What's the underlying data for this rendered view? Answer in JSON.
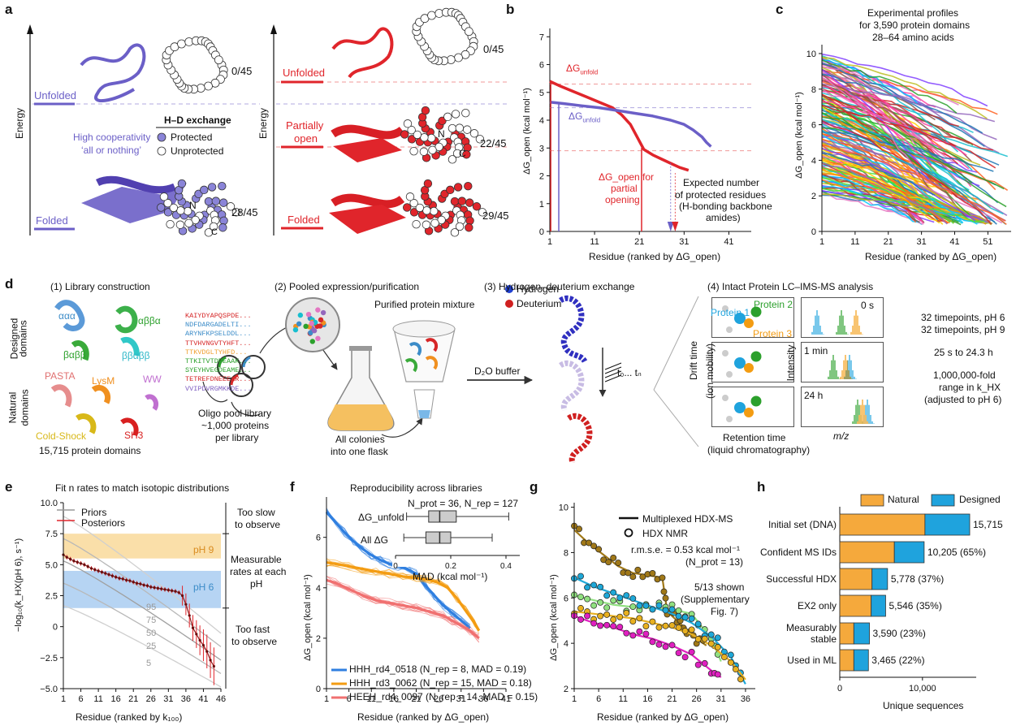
{
  "panel_letters": [
    "a",
    "b",
    "c",
    "d",
    "e",
    "f",
    "g",
    "h"
  ],
  "panel_a": {
    "left": {
      "energy_label": "Energy",
      "unfolded": "Unfolded",
      "folded": "Folded",
      "cooperativity": [
        "High cooperativity",
        "‘all or nothing’"
      ],
      "hdx_title": "H–D exchange",
      "protected": "Protected",
      "unprotected": "Unprotected",
      "count_unfolded": "0/45",
      "count_folded": "28/45",
      "n_label": "N",
      "c_label": "C"
    },
    "right": {
      "energy_label": "Energy",
      "unfolded": "Unfolded",
      "partially_open": [
        "Partially",
        "open"
      ],
      "folded": "Folded",
      "count_unfolded": "0/45",
      "count_partial": "22/45",
      "count_folded": "29/45"
    },
    "colors": {
      "purple": "#6b5fc7",
      "red": "#e0252b"
    }
  },
  "panel_b": {
    "ylabel": "ΔG_open (kcal mol⁻¹)",
    "xlabel": "Residue (ranked by ΔG_open)",
    "dg_unfold_red": "ΔG",
    "dg_unfold_red_sub": "unfold",
    "dg_unfold_purple": "ΔG",
    "dg_unfold_purple_sub": "unfold",
    "dg_open_partial": [
      "ΔG_open for",
      "partial",
      "opening"
    ],
    "expected": [
      "Expected number",
      "of protected residues",
      "(H-bonding backbone",
      "amides)"
    ],
    "chart_data": {
      "type": "line",
      "xticks": [
        1,
        11,
        21,
        31,
        41
      ],
      "yticks": [
        0,
        1,
        2,
        3,
        4,
        5,
        6,
        7
      ],
      "xlim": [
        1,
        46
      ],
      "ylim": [
        0,
        7.3
      ],
      "series": [
        {
          "color": "#e0252b",
          "x": [
            1,
            3,
            6,
            9,
            12,
            15,
            17,
            19,
            21,
            22,
            24,
            26,
            28,
            30,
            32
          ],
          "y": [
            5.4,
            5.25,
            5.05,
            4.85,
            4.65,
            4.45,
            4.2,
            3.85,
            3.25,
            2.95,
            2.75,
            2.6,
            2.45,
            2.3,
            2.2
          ]
        },
        {
          "color": "#6b5fc7",
          "x": [
            1,
            4,
            8,
            12,
            16,
            20,
            24,
            28,
            31,
            33,
            35,
            36,
            37
          ],
          "y": [
            4.65,
            4.6,
            4.52,
            4.45,
            4.35,
            4.25,
            4.15,
            4.0,
            3.85,
            3.65,
            3.4,
            3.2,
            3.05
          ]
        }
      ]
    }
  },
  "panel_c": {
    "title": [
      "Experimental profiles",
      "for 3,590 protein domains",
      "28–64 amino acids"
    ],
    "ylabel": "ΔG_open (kcal mol⁻¹)",
    "xlabel": "Residue (ranked by ΔG_open)",
    "chart_data": {
      "type": "line",
      "xticks": [
        1,
        11,
        21,
        31,
        41,
        51
      ],
      "yticks": [
        0,
        2,
        4,
        6,
        8,
        10
      ],
      "xlim": [
        1,
        58
      ],
      "ylim": [
        0,
        10.5
      ]
    }
  },
  "panel_d": {
    "step1": "(1) Library construction",
    "step2": "(2) Pooled expression/purification",
    "step3": "(3) Hydrogen–deuterium exchange",
    "step4": "(4) Intact Protein LC–IMS-MS analysis",
    "designed_domains": [
      "Designed",
      "domains"
    ],
    "natural_domains": [
      "Natural",
      "domains"
    ],
    "folds": [
      "ααα",
      "αββα",
      "βαββ",
      "ββαββ",
      "PASTA",
      "LysM",
      "WW",
      "SH3",
      "Cold-Shock"
    ],
    "domain_count": "15,715 protein domains",
    "sequences": [
      "KAIYDYAPQSPDE...",
      "NDFDARGADELTI...",
      "ARYNFKPSELDDL...",
      "TTVHVNGVTYHFT...",
      "TTKVDGLTYHFD...",
      "TTKITVTDPEAAK...",
      "SYEYHVEGDEAME...",
      "TETREFDNEEEAR...",
      "VVIPDVRGMKKDE..."
    ],
    "sequence_colors": [
      "#d62728",
      "#3c8cc8",
      "#3c8cc8",
      "#d62728",
      "#f0a030",
      "#2ca02c",
      "#2ca02c",
      "#d62728",
      "#7f5fc0"
    ],
    "oligo_pool": [
      "Oligo pool library",
      "~1,000 proteins",
      "per library"
    ],
    "purified": "Purified protein mixture",
    "colonies": [
      "All colonies",
      "into one flask"
    ],
    "d2o": "D₂O buffer",
    "hydrogen": "Hydrogen",
    "deuterium": "Deuterium",
    "time_range": "t₀... tₙ",
    "drift_time": [
      "Drift time",
      "(ion mobility)"
    ],
    "retention": [
      "Retention time",
      "(liquid chromatography)"
    ],
    "intensity": "Intensity",
    "mz": "m/z",
    "protein1": "Protein 1",
    "protein2": "Protein 2",
    "protein3": "Protein 3",
    "timepoints": [
      "0 s",
      "1 min",
      "24 h"
    ],
    "notes": [
      "32 timepoints, pH 6",
      "32 timepoints, pH 9",
      "25 s to 24.3 h",
      "1,000,000-fold",
      "range in k_HX",
      "(adjusted to pH 6)"
    ]
  },
  "panel_e": {
    "title": "Fit n rates to match isotopic distributions",
    "legend_priors": "Priors",
    "legend_posteriors": "Posteriors",
    "ph9": "pH 9",
    "ph6": "pH 6",
    "too_slow": [
      "Too slow",
      "to observe"
    ],
    "measurable": [
      "Measurable",
      "rates at each",
      "pH"
    ],
    "too_fast": [
      "Too fast",
      "to observe"
    ],
    "ylabel": "−log₁₀(k_HX(pH 6), s⁻¹)",
    "xlabel": "Residue (ranked by k₁₀₀)",
    "percentiles": [
      "95",
      "75",
      "50",
      "25",
      "5"
    ],
    "chart_data": {
      "type": "line",
      "xticks": [
        1,
        6,
        11,
        16,
        21,
        26,
        31,
        36,
        41,
        46
      ],
      "yticks": [
        -5.0,
        -2.5,
        0,
        2.5,
        5.0,
        7.5,
        10.0
      ],
      "ytick_labels": [
        "−5.0",
        "−2.5",
        "0",
        "2.5",
        "5.0",
        "7.5",
        "10.0"
      ],
      "xlim": [
        1,
        46
      ],
      "ylim": [
        -5,
        10
      ],
      "bands": [
        {
          "name": "pH 9",
          "from": 5.5,
          "to": 7.5,
          "color": "#f9d99a"
        },
        {
          "name": "pH 6",
          "from": 1.5,
          "to": 4.5,
          "color": "#a9cdf1"
        }
      ],
      "posterior": [
        5.8,
        5.6,
        5.45,
        5.3,
        5.2,
        5.1,
        5.0,
        4.85,
        4.7,
        4.6,
        4.5,
        4.4,
        4.3,
        4.2,
        4.1,
        4.0,
        3.9,
        3.85,
        3.75,
        3.7,
        3.6,
        3.5,
        3.45,
        3.35,
        3.3,
        3.2,
        3.15,
        3.1,
        3.05,
        3.0,
        2.95,
        2.9,
        2.85,
        2.75,
        2.5,
        1.8,
        0.9,
        -0.1,
        -0.6,
        -1.1,
        -1.5,
        -2.0,
        -2.7,
        -3.2
      ]
    }
  },
  "panel_f": {
    "title": "Reproducibility across libraries",
    "nprot": "N_prot = 36, N_rep = 127",
    "dg_unfold": "ΔG_unfold",
    "all_dg": "All ΔG",
    "mad_label": "MAD (kcal mol⁻¹)",
    "ylabel": "ΔG_open (kcal mol⁻¹)",
    "xlabel": "Residue (ranked by ΔG_open)",
    "legend": [
      {
        "label": "HHH_rd4_0518 (N_rep = 8, MAD = 0.19)",
        "color": "#2f7fe0"
      },
      {
        "label": "HHH_rd3_0062 (N_rep = 15, MAD = 0.18)",
        "color": "#f39c12"
      },
      {
        "label": "HEEH_rd4_0097 (N_rep = 14, MAD = 0.15)",
        "color": "#f07070"
      }
    ],
    "chart_data": {
      "type": "line",
      "xticks": [
        1,
        6,
        11,
        16,
        21,
        26,
        31,
        36,
        41
      ],
      "yticks": [
        0,
        2,
        4,
        6
      ],
      "xlim": [
        1,
        41
      ],
      "ylim": [
        0,
        7.6
      ],
      "box_xticks": [
        0,
        0.2,
        0.4
      ],
      "series": [
        {
          "name": "HHH_rd4_0518",
          "color": "#2f7fe0",
          "x": [
            1,
            3,
            5,
            7,
            9,
            11,
            13,
            15,
            17,
            19,
            21,
            23,
            25,
            27,
            29,
            31,
            33
          ],
          "y": [
            7.0,
            6.6,
            6.2,
            5.85,
            5.55,
            5.3,
            5.1,
            4.95,
            4.85,
            4.75,
            4.55,
            4.1,
            3.7,
            3.3,
            3.0,
            2.7,
            2.4
          ]
        },
        {
          "name": "HHH_rd3_0062",
          "color": "#f39c12",
          "x": [
            1,
            3,
            6,
            9,
            12,
            15,
            18,
            21,
            24,
            26,
            28,
            30,
            32,
            34,
            35
          ],
          "y": [
            5.0,
            4.95,
            4.85,
            4.75,
            4.65,
            4.55,
            4.45,
            4.4,
            4.3,
            4.2,
            4.0,
            3.6,
            3.1,
            2.6,
            2.3
          ]
        },
        {
          "name": "HEEH_rd4_0097",
          "color": "#f07070",
          "x": [
            1,
            3,
            6,
            9,
            12,
            15,
            18,
            21,
            24,
            27,
            29,
            31,
            33,
            35
          ],
          "y": [
            4.3,
            4.2,
            3.95,
            3.7,
            3.5,
            3.4,
            3.3,
            3.2,
            3.05,
            2.9,
            2.7,
            2.5,
            2.3,
            2.0
          ]
        }
      ]
    }
  },
  "panel_g": {
    "legend_hdx_ms": "Multiplexed HDX-MS",
    "legend_nmr": "HDX NMR",
    "rmse": "r.m.s.e. = 0.53 kcal mol⁻¹",
    "nprot": "(N_prot = 13)",
    "shown": [
      "5/13 shown",
      "(Supplementary",
      "Fig. 7)"
    ],
    "ylabel": "ΔG_open (kcal mol⁻¹)",
    "xlabel": "Residue (ranked by ΔG_open)",
    "chart_data": {
      "type": "line",
      "xticks": [
        1,
        6,
        11,
        16,
        21,
        26,
        31,
        36
      ],
      "yticks": [
        2,
        4,
        6,
        8,
        10
      ],
      "xlim": [
        1,
        38
      ],
      "ylim": [
        2,
        10.2
      ],
      "series": [
        {
          "color": "#a07818",
          "x": [
            1,
            4,
            7,
            10,
            13,
            16,
            19,
            20,
            22,
            24,
            26,
            28
          ],
          "y": [
            9.0,
            8.4,
            7.9,
            7.4,
            7.1,
            7.0,
            6.9,
            5.4,
            5.0,
            4.6,
            4.2,
            3.9
          ]
        },
        {
          "color": "#90e080",
          "x": [
            1,
            5,
            9,
            13,
            17,
            21,
            25,
            29,
            31
          ],
          "y": [
            6.1,
            5.9,
            5.7,
            5.6,
            5.55,
            5.5,
            5.3,
            4.2,
            3.2
          ]
        },
        {
          "color": "#1ea8d8",
          "x": [
            1,
            5,
            9,
            13,
            17,
            21,
            25,
            29,
            33,
            36
          ],
          "y": [
            6.9,
            6.5,
            6.2,
            5.9,
            5.6,
            5.3,
            4.9,
            4.3,
            3.4,
            2.2
          ]
        },
        {
          "color": "#e8b020",
          "x": [
            1,
            5,
            9,
            13,
            17,
            21,
            25,
            29,
            33,
            36
          ],
          "y": [
            5.4,
            5.3,
            5.2,
            5.1,
            4.9,
            4.7,
            4.4,
            3.9,
            3.2,
            2.4
          ]
        },
        {
          "color": "#e020c0",
          "x": [
            1,
            5,
            9,
            13,
            17,
            21,
            25,
            29,
            31
          ],
          "y": [
            5.2,
            4.9,
            4.7,
            4.4,
            4.2,
            3.9,
            3.5,
            2.8,
            2.5
          ]
        }
      ]
    }
  },
  "panel_h": {
    "legend_natural": "Natural",
    "legend_designed": "Designed",
    "xlabel": "Unique sequences",
    "chart_data": {
      "type": "bar",
      "categories": [
        "Initial set (DNA)",
        "Confident MS IDs",
        "Successful HDX",
        "EX2 only",
        "Measurably stable",
        "Used in ML"
      ],
      "category_lines": [
        [
          "Initial set (DNA)"
        ],
        [
          "Confident MS IDs"
        ],
        [
          "Successful HDX"
        ],
        [
          "EX2 only"
        ],
        [
          "Measurably",
          "stable"
        ],
        [
          "Used in ML"
        ]
      ],
      "labels": [
        "15,715",
        "10,205 (65%)",
        "5,778 (37%)",
        "5,546 (35%)",
        "3,590 (23%)",
        "3,465 (22%)"
      ],
      "totals": [
        15715,
        10205,
        5778,
        5546,
        3590,
        3465
      ],
      "natural": [
        10300,
        6600,
        3900,
        3800,
        1700,
        1700
      ],
      "colors": {
        "natural": "#f5a93c",
        "designed": "#1fa3dd"
      },
      "xticks": [
        0,
        10000
      ],
      "xtick_labels": [
        "0",
        "10,000"
      ],
      "xlim": [
        0,
        16500
      ]
    }
  }
}
